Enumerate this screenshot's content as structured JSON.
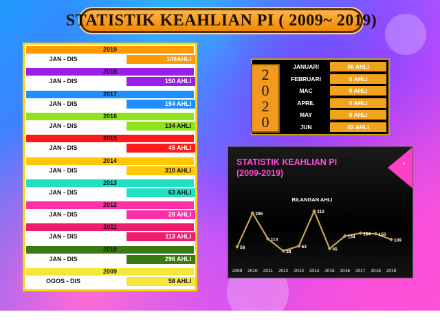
{
  "title": "STATISTIK KEAHLIAN PI ( 2009~ 2019)",
  "rows": [
    {
      "year": "2019",
      "label": "JAN - DIS",
      "value": "109AHLI",
      "color": "#ff9a00"
    },
    {
      "year": "2018",
      "label": "JAN - DIS",
      "value": "150 AHLI",
      "color": "#9b1fe6"
    },
    {
      "year": "2017",
      "label": "JAN - DIS",
      "value": "154 AHLI",
      "color": "#1e8fff"
    },
    {
      "year": "2016",
      "label": "JAN - DIS",
      "value": "134 AHLI",
      "color": "#8ee31a"
    },
    {
      "year": "2015",
      "label": "JAN - DIS",
      "value": "45 AHLI",
      "color": "#ff1a1a"
    },
    {
      "year": "2014",
      "label": "JAN - DIS",
      "value": "310 AHLI",
      "color": "#ffc800"
    },
    {
      "year": "2013",
      "label": "JAN - DIS",
      "value": "63 AHLI",
      "color": "#21e0c2"
    },
    {
      "year": "2012",
      "label": "JAN - DIS",
      "value": "28 AHLI",
      "color": "#ff2fa8"
    },
    {
      "year": "2011",
      "label": "JAN - DIS",
      "value": "113 AHLI",
      "color": "#ee1c6e"
    },
    {
      "year": "2010",
      "label": "JAN - DIS",
      "value": "296 AHLI",
      "color": "#3b7a12"
    },
    {
      "year": "2009",
      "label": "OGOS - DIS",
      "value": "58 AHLI",
      "color": "#f5e63a"
    }
  ],
  "year2020": {
    "badge": [
      "2",
      "0",
      "2",
      "0"
    ],
    "months": [
      {
        "month": "JANUARI",
        "value": "06 AHLI"
      },
      {
        "month": "FEBRUARI",
        "value": "0 AHLI"
      },
      {
        "month": "MAC",
        "value": "0 AHLI"
      },
      {
        "month": "APRIL",
        "value": "0 AHLI"
      },
      {
        "month": "MAY",
        "value": "0 AHLI"
      },
      {
        "month": "JUN",
        "value": "02 AHLI"
      }
    ]
  },
  "chart_data": {
    "type": "line",
    "title_line1": "STATISTIK KEAHLIAN PI",
    "title_line2": "(2009-2019)",
    "corner_label": "5",
    "series_name": "BILANGAN AHLI",
    "x": [
      "2009",
      "2010",
      "2011",
      "2012",
      "2013",
      "2014",
      "2015",
      "2016",
      "2017",
      "2018",
      "2019"
    ],
    "values": [
      58,
      296,
      113,
      28,
      63,
      310,
      45,
      134,
      154,
      150,
      109
    ],
    "ylim": [
      0,
      330
    ],
    "line_color": "#c8a45a"
  }
}
